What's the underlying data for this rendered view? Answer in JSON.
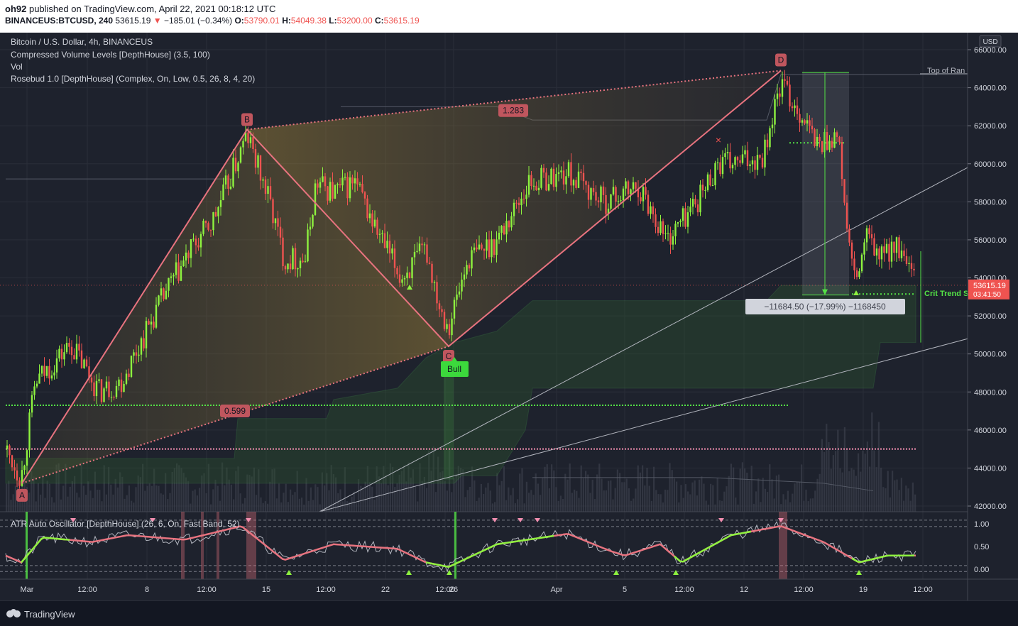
{
  "header": {
    "publisher": "oh92",
    "published_text": "published on TradingView.com, April 22, 2021 00:18:12 UTC",
    "symbol": "BINANCEUS:BTCUSD, 240",
    "last": "53615.19",
    "change_arrow": "▼",
    "change": "−185.01 (−0.34%)",
    "o_label": "O:",
    "o": "53790.01",
    "h_label": "H:",
    "h": "54049.38",
    "l_label": "L:",
    "l": "53200.00",
    "c_label": "C:",
    "c": "53615.19"
  },
  "legend": {
    "title": "Bitcoin / U.S. Dollar, 4h, BINANCEUS",
    "ind1": "Compressed Volume Levels [DepthHouse] (3.5, 100)",
    "ind2": "Vol",
    "ind3": "Rosebud 1.0 [DepthHouse] (Complex, On, Low, 0.5, 26, 8, 4, 20)",
    "osc": "ATR Auto Oscillator [DepthHouse] (26, 6, On, Fast Band, 52)"
  },
  "price_axis": {
    "currency": "USD",
    "ticks": [
      "66000.00",
      "64000.00",
      "62000.00",
      "60000.00",
      "58000.00",
      "56000.00",
      "54000.00",
      "52000.00",
      "50000.00",
      "48000.00",
      "46000.00",
      "44000.00",
      "42000.00"
    ],
    "last_price": "53615.19",
    "countdown": "03:41:50",
    "osc_ticks": [
      "1.00",
      "0.50",
      "0.00"
    ]
  },
  "time_axis": {
    "labels": [
      "Mar",
      "12:00",
      "8",
      "12:00",
      "15",
      "12:00",
      "22",
      "12:00",
      "26",
      "Apr",
      "5",
      "12:00",
      "12",
      "12:00",
      "19",
      "12:00"
    ]
  },
  "pattern": {
    "points": [
      "A",
      "B",
      "C",
      "D"
    ],
    "ratio_ac": "0.599",
    "ratio_bd": "1.283",
    "bull_label": "Bull",
    "measure": "−11684.50 (−17.99%) −1168450",
    "top_of_range": "Top of Ran",
    "crit_trend": "Crit Trend S"
  },
  "colors": {
    "bull": "#8ef23f",
    "bear": "#ef5350",
    "pattern": "#e8737f",
    "support_green": "#54e346",
    "pink_line": "#f48fb1"
  },
  "footer": {
    "brand": "TradingView",
    "logo_icon": "tradingview-logo-icon"
  }
}
